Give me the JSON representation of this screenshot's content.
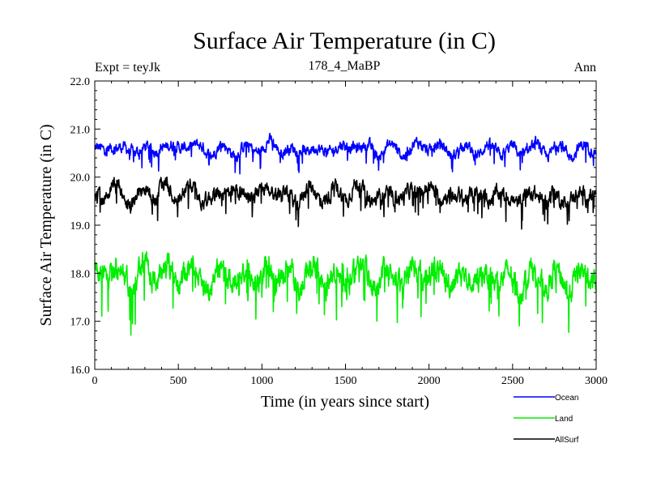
{
  "chart_data": {
    "type": "line",
    "title": "Surface Air Temperature (in C)",
    "subtitle": "178_4_MaBP",
    "left_note": "Expt = teyJk",
    "right_note": "Ann",
    "xlabel": "Time (in years since start)",
    "ylabel": "Surface Air Temperature (in C)",
    "xlim": [
      0,
      3000
    ],
    "ylim": [
      16.0,
      22.0
    ],
    "x_ticks": [
      "0",
      "500",
      "1000",
      "1500",
      "2000",
      "2500",
      "3000"
    ],
    "y_ticks": [
      "16.0",
      "17.0",
      "18.0",
      "19.0",
      "20.0",
      "21.0",
      "22.0"
    ],
    "grid": false,
    "legend_position": "bottom-right",
    "series": [
      {
        "name": "Ocean",
        "color": "#0000ff",
        "x": [
          0,
          50,
          100,
          150,
          200,
          250,
          300,
          350,
          400,
          450,
          500,
          550,
          600,
          650,
          700,
          750,
          800,
          850,
          900,
          950,
          1000,
          1050,
          1100,
          1150,
          1200,
          1250,
          1300,
          1350,
          1400,
          1450,
          1500,
          1550,
          1600,
          1650,
          1700,
          1750,
          1800,
          1850,
          1900,
          1950,
          2000,
          2050,
          2100,
          2150,
          2200,
          2250,
          2300,
          2350,
          2400,
          2450,
          2500,
          2550,
          2600,
          2650,
          2700,
          2750,
          2800,
          2850,
          2900,
          2950,
          3000
        ],
        "values": [
          20.6,
          20.5,
          20.7,
          20.6,
          20.5,
          20.6,
          20.6,
          20.5,
          20.7,
          20.6,
          20.6,
          20.7,
          20.6,
          20.6,
          20.5,
          20.6,
          20.6,
          20.5,
          20.6,
          20.6,
          20.6,
          20.7,
          20.6,
          20.6,
          20.5,
          20.6,
          20.6,
          20.5,
          20.6,
          20.6,
          20.6,
          20.7,
          20.6,
          20.6,
          20.5,
          20.6,
          20.6,
          20.5,
          20.6,
          20.7,
          20.6,
          20.6,
          20.6,
          20.5,
          20.6,
          20.6,
          20.5,
          20.6,
          20.6,
          20.5,
          20.6,
          20.5,
          20.6,
          20.6,
          20.5,
          20.6,
          20.6,
          20.5,
          20.6,
          20.6,
          20.6
        ]
      },
      {
        "name": "Land",
        "color": "#00ee00",
        "x": [
          0,
          50,
          100,
          150,
          200,
          250,
          300,
          350,
          400,
          450,
          500,
          550,
          600,
          650,
          700,
          750,
          800,
          850,
          900,
          950,
          1000,
          1050,
          1100,
          1150,
          1200,
          1250,
          1300,
          1350,
          1400,
          1450,
          1500,
          1550,
          1600,
          1650,
          1700,
          1750,
          1800,
          1850,
          1900,
          1950,
          2000,
          2050,
          2100,
          2150,
          2200,
          2250,
          2300,
          2350,
          2400,
          2450,
          2500,
          2550,
          2600,
          2650,
          2700,
          2750,
          2800,
          2850,
          2900,
          2950,
          3000
        ],
        "values": [
          17.9,
          18.0,
          18.1,
          18.0,
          17.8,
          18.0,
          18.0,
          17.9,
          18.1,
          18.0,
          17.9,
          18.1,
          18.0,
          17.9,
          17.8,
          18.0,
          18.0,
          17.9,
          18.0,
          18.0,
          17.9,
          18.1,
          18.0,
          17.9,
          17.8,
          18.0,
          18.0,
          17.9,
          17.9,
          18.0,
          17.9,
          18.1,
          18.0,
          17.9,
          17.8,
          17.9,
          18.0,
          17.8,
          18.0,
          18.1,
          18.0,
          17.9,
          18.0,
          17.8,
          17.9,
          18.0,
          17.8,
          17.9,
          18.0,
          17.8,
          17.9,
          17.8,
          17.9,
          18.0,
          17.8,
          17.9,
          17.9,
          17.8,
          17.9,
          18.0,
          17.9
        ]
      },
      {
        "name": "AllSurf",
        "color": "#000000",
        "x": [
          0,
          50,
          100,
          150,
          200,
          250,
          300,
          350,
          400,
          450,
          500,
          550,
          600,
          650,
          700,
          750,
          800,
          850,
          900,
          950,
          1000,
          1050,
          1100,
          1150,
          1200,
          1250,
          1300,
          1350,
          1400,
          1450,
          1500,
          1550,
          1600,
          1650,
          1700,
          1750,
          1800,
          1850,
          1900,
          1950,
          2000,
          2050,
          2100,
          2150,
          2200,
          2250,
          2300,
          2350,
          2400,
          2450,
          2500,
          2550,
          2600,
          2650,
          2700,
          2750,
          2800,
          2850,
          2900,
          2950,
          3000
        ],
        "values": [
          19.6,
          19.6,
          19.8,
          19.7,
          19.5,
          19.6,
          19.7,
          19.6,
          19.8,
          19.7,
          19.6,
          19.8,
          19.7,
          19.6,
          19.5,
          19.7,
          19.7,
          19.6,
          19.7,
          19.7,
          19.6,
          19.8,
          19.7,
          19.6,
          19.5,
          19.7,
          19.7,
          19.6,
          19.6,
          19.7,
          19.6,
          19.8,
          19.7,
          19.6,
          19.5,
          19.6,
          19.7,
          19.5,
          19.7,
          19.8,
          19.7,
          19.6,
          19.7,
          19.5,
          19.6,
          19.7,
          19.5,
          19.6,
          19.7,
          19.5,
          19.6,
          19.5,
          19.6,
          19.7,
          19.5,
          19.6,
          19.6,
          19.5,
          19.6,
          19.7,
          19.6
        ]
      }
    ]
  }
}
